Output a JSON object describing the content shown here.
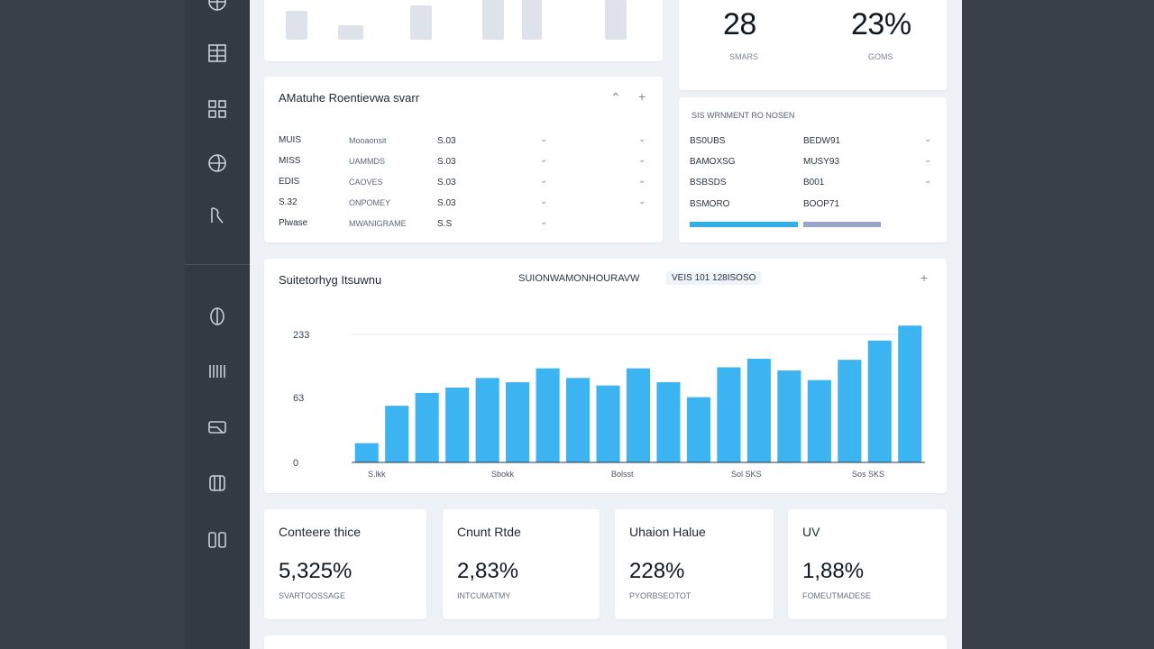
{
  "sidebar": {
    "icons": [
      {
        "name": "globe-icon",
        "top": -10
      },
      {
        "name": "grid-icon",
        "top": 45
      },
      {
        "name": "apps-icon",
        "top": 107
      },
      {
        "name": "globe-icon",
        "top": 167
      },
      {
        "name": "tag-icon",
        "top": 225
      },
      {
        "name": "shield-icon",
        "top": 337
      },
      {
        "name": "columns-icon",
        "top": 398
      },
      {
        "name": "card-icon",
        "top": 460
      },
      {
        "name": "box-icon",
        "top": 522
      },
      {
        "name": "modules-icon",
        "top": 585
      }
    ]
  },
  "top_stats": {
    "stat1": {
      "value": "28",
      "label": "SMARS"
    },
    "stat2": {
      "value": "23%",
      "label": "GOMS"
    }
  },
  "table_card": {
    "title": "AMatuhe Roentievwa svarr",
    "rows": [
      {
        "c1": "MUIS",
        "c2": "Mooaonsit",
        "c3": "S.03"
      },
      {
        "c1": "MISS",
        "c2": "UAMMDS",
        "c3": "S.03"
      },
      {
        "c1": "EDIS",
        "c2": "CAOVES",
        "c3": "S.03"
      },
      {
        "c1": "S.32",
        "c2": "ONPOMEY",
        "c3": "S.03"
      },
      {
        "c1": "Plwase",
        "c2": "MWANIGRAME",
        "c3": "S.S"
      }
    ]
  },
  "side_card": {
    "subtitle": "SIS  WRNMENT  RO NOSEN",
    "rows": [
      {
        "c1": "BS0UBS",
        "c2": "BEDW91"
      },
      {
        "c1": "BAMOXSG",
        "c2": "MUSY93"
      },
      {
        "c1": "BSBSDS",
        "c2": "B001"
      },
      {
        "c1": "BSMORO",
        "c2": "BOOP71"
      }
    ],
    "progress": [
      {
        "fill": 1.0,
        "color": "#35aee8"
      },
      {
        "fill": 1.0,
        "color": "#9aa3c8"
      }
    ]
  },
  "chart_card": {
    "title": "Suitetorhyg Itsuwnu",
    "center_label": "SUIONWAMONHOURAVW",
    "badge": "VEIS 101  128ISOSO"
  },
  "chart_data": {
    "type": "bar",
    "color": "#3db4f2",
    "y_ticks": [
      "233",
      "63",
      "0"
    ],
    "x_labels": [
      "S.lkk",
      "Sbokk",
      "Bolsst",
      "Sol SKS",
      "Sos SKS"
    ],
    "values": [
      18,
      53,
      65,
      70,
      79,
      75,
      88,
      79,
      72,
      88,
      75,
      61,
      89,
      97,
      86,
      77,
      96,
      114,
      128
    ],
    "ylim": [
      0,
      140
    ]
  },
  "kpis": [
    {
      "title": "Conteere thice",
      "value": "5,325%",
      "sub": "SVARTOOSSAGE"
    },
    {
      "title": "Cnunt Rtde",
      "value": "2,83%",
      "sub": "INTCUMATMY"
    },
    {
      "title": "Uhaion Halue",
      "value": "228%",
      "sub": "PYORBSEOTOT"
    },
    {
      "title": "UV",
      "value": "1,88%",
      "sub": "FOMEUTMADESE"
    }
  ]
}
